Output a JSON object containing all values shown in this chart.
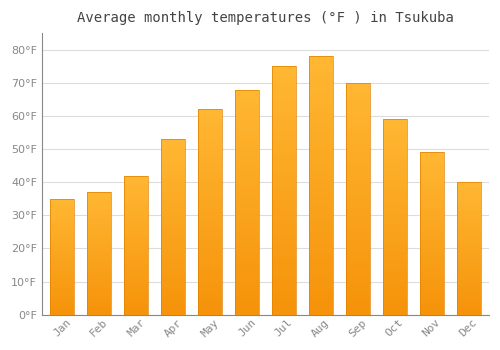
{
  "title": "Average monthly temperatures (°F ) in Tsukuba",
  "months": [
    "Jan",
    "Feb",
    "Mar",
    "Apr",
    "May",
    "Jun",
    "Jul",
    "Aug",
    "Sep",
    "Oct",
    "Nov",
    "Dec"
  ],
  "values": [
    35,
    37,
    42,
    53,
    62,
    68,
    75,
    78,
    70,
    59,
    49,
    40
  ],
  "bar_color_top": "#FFB733",
  "bar_color_bottom": "#F5930A",
  "bar_edge_color": "#E08000",
  "background_color": "#FFFFFF",
  "grid_color": "#DDDDDD",
  "ylim": [
    0,
    85
  ],
  "yticks": [
    0,
    10,
    20,
    30,
    40,
    50,
    60,
    70,
    80
  ],
  "tick_label_color": "#888888",
  "title_color": "#444444",
  "title_fontsize": 10,
  "bar_width": 0.65
}
